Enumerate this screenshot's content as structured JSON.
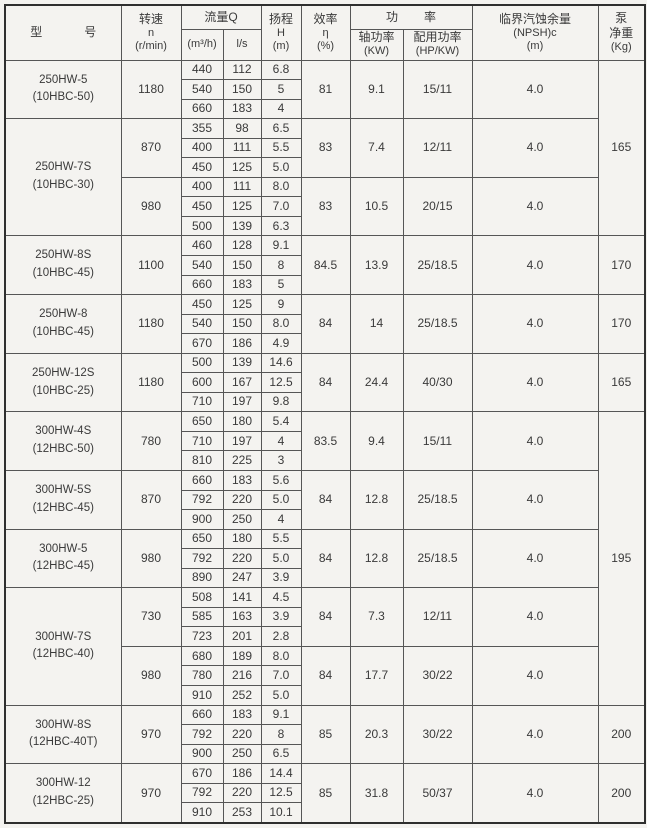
{
  "colors": {
    "paper": "#f4f3f0",
    "grid_line": "#565656",
    "heavy_line": "#2f2f2f",
    "text": "#3a3a3a"
  },
  "header": {
    "model": [
      "型",
      "号"
    ],
    "speed": [
      "转速",
      "n",
      "(r/min)"
    ],
    "flow": "流量Q",
    "flow_m3h": "(m³/h)",
    "flow_ls": "l/s",
    "head": [
      "扬程",
      "H",
      "(m)"
    ],
    "eff": [
      "效率",
      "η",
      "(%)"
    ],
    "power": [
      "功",
      "率"
    ],
    "shaft": [
      "轴功率",
      "(KW)"
    ],
    "rated": [
      "配用功率",
      "(HP/KW)"
    ],
    "npsh": [
      "临界汽蚀余量",
      "(NPSH)c",
      "(m)"
    ],
    "weight": [
      "泵",
      "净重",
      "(Kg)"
    ]
  },
  "groups": [
    {
      "model": "250HW-5",
      "sub": "(10HBC-50)",
      "weight": {
        "value": "165",
        "span": 9
      },
      "speeds": [
        {
          "rpm": "1180",
          "eff": "81",
          "shaft": "9.1",
          "rated": "15/11",
          "npsh": "4.0",
          "rows": [
            [
              "440",
              "112",
              "6.8"
            ],
            [
              "540",
              "150",
              "5"
            ],
            [
              "660",
              "183",
              "4"
            ]
          ]
        }
      ]
    },
    {
      "model": "250HW-7S",
      "sub": "(10HBC-30)",
      "speeds": [
        {
          "rpm": "870",
          "eff": "83",
          "shaft": "7.4",
          "rated": "12/11",
          "npsh": "4.0",
          "rows": [
            [
              "355",
              "98",
              "6.5"
            ],
            [
              "400",
              "111",
              "5.5"
            ],
            [
              "450",
              "125",
              "5.0"
            ]
          ]
        },
        {
          "rpm": "980",
          "eff": "83",
          "shaft": "10.5",
          "rated": "20/15",
          "npsh": "4.0",
          "rows": [
            [
              "400",
              "111",
              "8.0"
            ],
            [
              "450",
              "125",
              "7.0"
            ],
            [
              "500",
              "139",
              "6.3"
            ]
          ]
        }
      ]
    },
    {
      "model": "250HW-8S",
      "sub": "(10HBC-45)",
      "weight": {
        "value": "170",
        "span": 3
      },
      "speeds": [
        {
          "rpm": "1100",
          "eff": "84.5",
          "shaft": "13.9",
          "rated": "25/18.5",
          "npsh": "4.0",
          "rows": [
            [
              "460",
              "128",
              "9.1"
            ],
            [
              "540",
              "150",
              "8"
            ],
            [
              "660",
              "183",
              "5"
            ]
          ]
        }
      ]
    },
    {
      "model": "250HW-8",
      "sub": "(10HBC-45)",
      "weight": {
        "value": "170",
        "span": 3
      },
      "speeds": [
        {
          "rpm": "1180",
          "eff": "84",
          "shaft": "14",
          "rated": "25/18.5",
          "npsh": "4.0",
          "rows": [
            [
              "450",
              "125",
              "9"
            ],
            [
              "540",
              "150",
              "8.0"
            ],
            [
              "670",
              "186",
              "4.9"
            ]
          ]
        }
      ]
    },
    {
      "model": "250HW-12S",
      "sub": "(10HBC-25)",
      "weight": {
        "value": "165",
        "span": 3
      },
      "speeds": [
        {
          "rpm": "1180",
          "eff": "84",
          "shaft": "24.4",
          "rated": "40/30",
          "npsh": "4.0",
          "rows": [
            [
              "500",
              "139",
              "14.6"
            ],
            [
              "600",
              "167",
              "12.5"
            ],
            [
              "710",
              "197",
              "9.8"
            ]
          ]
        }
      ]
    },
    {
      "model": "300HW-4S",
      "sub": "(12HBC-50)",
      "weight": {
        "value": "195",
        "span": 15
      },
      "speeds": [
        {
          "rpm": "780",
          "eff": "83.5",
          "shaft": "9.4",
          "rated": "15/11",
          "npsh": "4.0",
          "rows": [
            [
              "650",
              "180",
              "5.4"
            ],
            [
              "710",
              "197",
              "4"
            ],
            [
              "810",
              "225",
              "3"
            ]
          ]
        }
      ]
    },
    {
      "model": "300HW-5S",
      "sub": "(12HBC-45)",
      "speeds": [
        {
          "rpm": "870",
          "eff": "84",
          "shaft": "12.8",
          "rated": "25/18.5",
          "npsh": "4.0",
          "rows": [
            [
              "660",
              "183",
              "5.6"
            ],
            [
              "792",
              "220",
              "5.0"
            ],
            [
              "900",
              "250",
              "4"
            ]
          ]
        }
      ]
    },
    {
      "model": "300HW-5",
      "sub": "(12HBC-45)",
      "speeds": [
        {
          "rpm": "980",
          "eff": "84",
          "shaft": "12.8",
          "rated": "25/18.5",
          "npsh": "4.0",
          "rows": [
            [
              "650",
              "180",
              "5.5"
            ],
            [
              "792",
              "220",
              "5.0"
            ],
            [
              "890",
              "247",
              "3.9"
            ]
          ]
        }
      ]
    },
    {
      "model": "300HW-7S",
      "sub": "(12HBC-40)",
      "speeds": [
        {
          "rpm": "730",
          "eff": "84",
          "shaft": "7.3",
          "rated": "12/11",
          "npsh": "4.0",
          "rows": [
            [
              "508",
              "141",
              "4.5"
            ],
            [
              "585",
              "163",
              "3.9"
            ],
            [
              "723",
              "201",
              "2.8"
            ]
          ]
        },
        {
          "rpm": "980",
          "eff": "84",
          "shaft": "17.7",
          "rated": "30/22",
          "npsh": "4.0",
          "rows": [
            [
              "680",
              "189",
              "8.0"
            ],
            [
              "780",
              "216",
              "7.0"
            ],
            [
              "910",
              "252",
              "5.0"
            ]
          ]
        }
      ]
    },
    {
      "model": "300HW-8S",
      "sub": "(12HBC-40T)",
      "weight": {
        "value": "200",
        "span": 3
      },
      "speeds": [
        {
          "rpm": "970",
          "eff": "85",
          "shaft": "20.3",
          "rated": "30/22",
          "npsh": "4.0",
          "rows": [
            [
              "660",
              "183",
              "9.1"
            ],
            [
              "792",
              "220",
              "8"
            ],
            [
              "900",
              "250",
              "6.5"
            ]
          ]
        }
      ]
    },
    {
      "model": "300HW-12",
      "sub": "(12HBC-25)",
      "weight": {
        "value": "200",
        "span": 3
      },
      "speeds": [
        {
          "rpm": "970",
          "eff": "85",
          "shaft": "31.8",
          "rated": "50/37",
          "npsh": "4.0",
          "rows": [
            [
              "670",
              "186",
              "14.4"
            ],
            [
              "792",
              "220",
              "12.5"
            ],
            [
              "910",
              "253",
              "10.1"
            ]
          ]
        }
      ]
    }
  ]
}
